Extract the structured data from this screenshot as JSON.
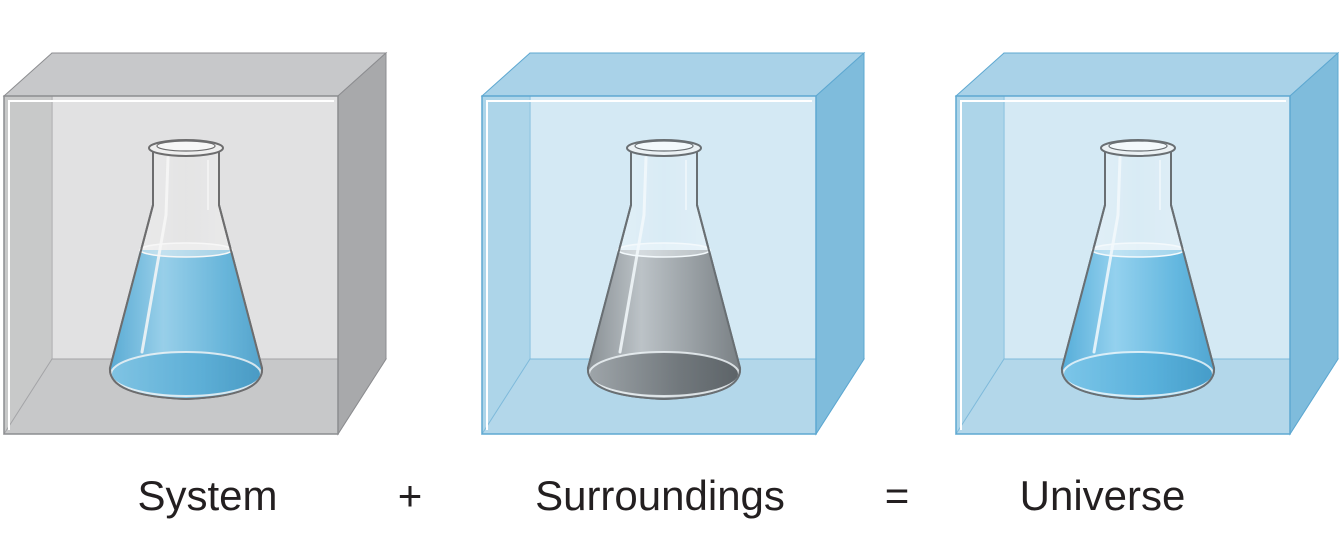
{
  "labels": {
    "system": "System",
    "plus": "+",
    "surroundings": "Surroundings",
    "equals": "=",
    "universe": "Universe"
  },
  "boxes": [
    {
      "id": "system",
      "front": "#e1e1e2",
      "side": "#a8a9ab",
      "top": "#c7c8ca",
      "bottom": "#bdbec0",
      "edge": "#8c8d90",
      "liquid": "blue"
    },
    {
      "id": "surroundings",
      "front": "#d5e9f4",
      "side": "#7fbcdc",
      "top": "#a9d2e8",
      "bottom": "#a7d0e6",
      "edge": "#5ea8d1",
      "liquid": "gray"
    },
    {
      "id": "universe",
      "front": "#d5e9f4",
      "side": "#7fbcdc",
      "top": "#a9d2e8",
      "bottom": "#a7d0e6",
      "edge": "#5ea8d1",
      "liquid": "blue"
    }
  ],
  "colors": {
    "text": "#231f20",
    "glass_outline": "#414042",
    "liquid_blue_light": "#8fd0ef",
    "liquid_blue_dark": "#1a8fc7",
    "liquid_gray_light": "#b8b9bb",
    "liquid_gray_dark": "#4a4b4d"
  }
}
